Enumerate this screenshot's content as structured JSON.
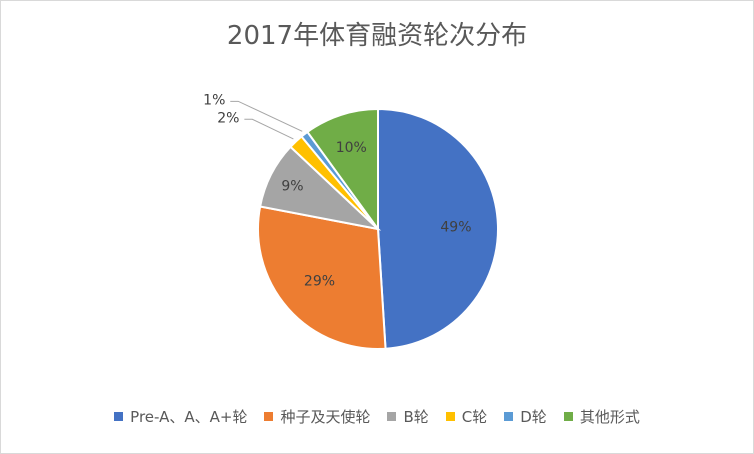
{
  "chart_data": {
    "type": "pie",
    "title": "2017年体育融资轮次分布",
    "categories": [
      "Pre-A、A、A+轮",
      "种子及天使轮",
      "B轮",
      "C轮",
      "D轮",
      "其他形式"
    ],
    "values": [
      49,
      29,
      9,
      2,
      1,
      10
    ],
    "labels": [
      "49%",
      "29%",
      "9%",
      "2%",
      "1%",
      "10%"
    ],
    "colors": [
      "#4472c4",
      "#ed7d31",
      "#a5a5a5",
      "#ffc000",
      "#5b9bd5",
      "#70ad47"
    ],
    "legend_position": "bottom",
    "start_angle": "12 o'clock",
    "direction": "clockwise"
  }
}
